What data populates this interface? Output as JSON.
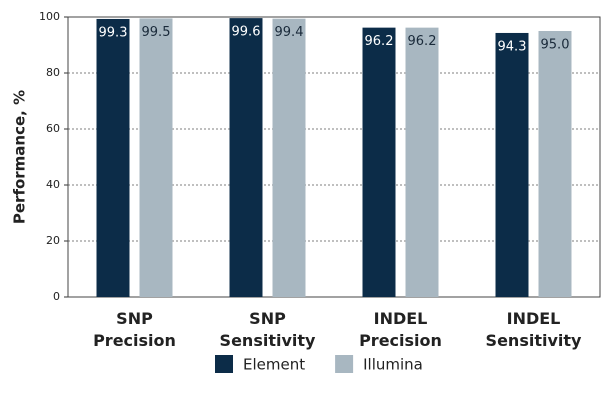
{
  "chart_data": {
    "type": "bar",
    "y_label": "Performance, %",
    "categories": [
      "SNP Precision",
      "SNP Sensitivity",
      "INDEL Precision",
      "INDEL Sensitivity"
    ],
    "series": [
      {
        "name": "Element",
        "color": "#0c2c48",
        "values": [
          99.3,
          99.6,
          96.2,
          94.3
        ],
        "value_labels": [
          "99.3",
          "99.6",
          "96.2",
          "94.3"
        ],
        "label_color": "#ffffff"
      },
      {
        "name": "Illumina",
        "color": "#a8b7c1",
        "values": [
          99.5,
          99.4,
          96.2,
          95.0
        ],
        "value_labels": [
          "99.5",
          "99.4",
          "96.2",
          "95.0"
        ],
        "label_color": "#1a2a3a"
      }
    ],
    "ylim": [
      0,
      100
    ],
    "yticks": [
      0,
      20,
      40,
      60,
      80,
      100
    ],
    "grid": true,
    "legend": "bottom"
  }
}
